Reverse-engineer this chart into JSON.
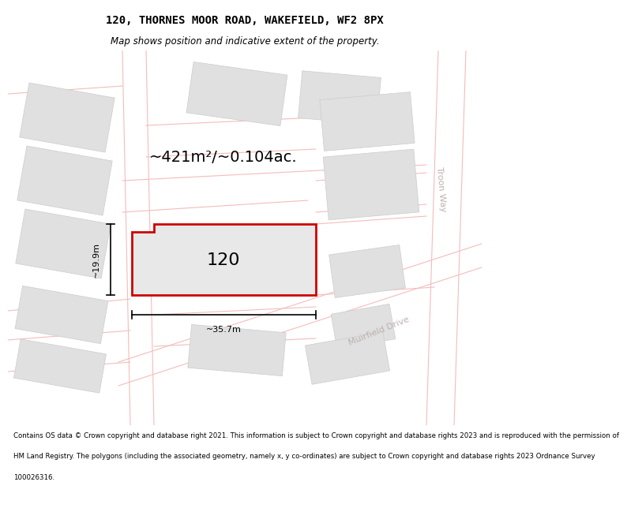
{
  "title": "120, THORNES MOOR ROAD, WAKEFIELD, WF2 8PX",
  "subtitle": "Map shows position and indicative extent of the property.",
  "footer_lines": [
    "Contains OS data © Crown copyright and database right 2021. This information is subject to Crown copyright and database rights 2023 and is reproduced with the permission of",
    "HM Land Registry. The polygons (including the associated geometry, namely x, y co-ordinates) are subject to Crown copyright and database rights 2023 Ordnance Survey",
    "100026316."
  ],
  "area_label": "~421m²/~0.104ac.",
  "width_label": "~35.7m",
  "height_label": "~19.9m",
  "property_number": "120",
  "map_bg": "#ffffff",
  "road_color": "#f4bcbc",
  "road_fill": "#fde8e8",
  "building_color": "#e0e0e0",
  "building_stroke": "#cccccc",
  "property_fill": "#e8e8e8",
  "property_stroke": "#cc0000",
  "road_text_color": "#c0b0b0",
  "troon_way": "Troon Way",
  "muirfield_drive": "Muirfield Drive",
  "title_fontsize": 10,
  "subtitle_fontsize": 8.5,
  "footer_fontsize": 6.2,
  "area_fontsize": 14,
  "dim_fontsize": 8,
  "label_fontsize": 16,
  "road_label_fontsize": 8
}
